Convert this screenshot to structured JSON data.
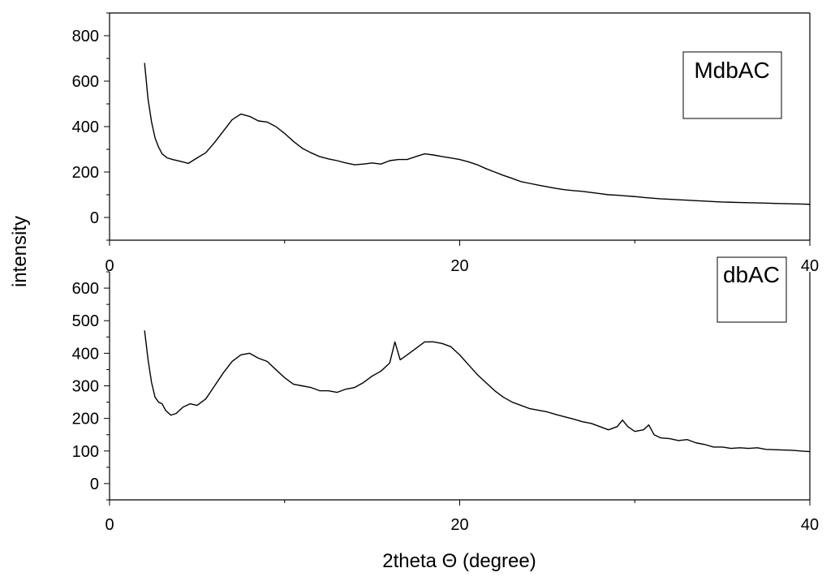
{
  "figure": {
    "ylabel": "intensity",
    "xlabel": "2theta Θ (degree)"
  },
  "chart_data": [
    {
      "type": "line",
      "legend_label": "MdbAC",
      "legend_position": "top-right",
      "xlim": [
        0,
        40
      ],
      "ylim": [
        -100,
        900
      ],
      "x_ticks": [
        0,
        20,
        40
      ],
      "y_ticks": [
        0,
        200,
        400,
        600,
        800
      ],
      "grid": false,
      "series": [
        {
          "x": [
            2.0,
            2.2,
            2.4,
            2.6,
            2.8,
            3.0,
            3.3,
            3.6,
            4.0,
            4.5,
            5.0,
            5.5,
            6.0,
            6.5,
            7.0,
            7.5,
            8.0,
            8.5,
            9.0,
            9.5,
            10.0,
            10.5,
            11.0,
            11.5,
            12.0,
            12.5,
            13.0,
            13.5,
            14.0,
            14.5,
            15.0,
            15.5,
            16.0,
            16.5,
            17.0,
            17.5,
            18.0,
            18.5,
            19.0,
            19.5,
            20.0,
            20.5,
            21.0,
            21.5,
            22.0,
            22.5,
            23.0,
            23.5,
            24.0,
            24.5,
            25.0,
            25.5,
            26.0,
            26.5,
            27.0,
            27.5,
            28.0,
            28.5,
            29.0,
            29.5,
            30.0,
            30.5,
            31.0,
            31.5,
            32.0,
            32.5,
            33.0,
            33.5,
            34.0,
            34.5,
            35.0,
            35.5,
            36.0,
            36.5,
            37.0,
            37.5,
            38.0,
            38.5,
            39.0,
            39.5,
            40.0
          ],
          "y": [
            680,
            520,
            420,
            350,
            310,
            280,
            262,
            255,
            248,
            238,
            262,
            285,
            330,
            380,
            430,
            455,
            445,
            425,
            420,
            400,
            370,
            335,
            305,
            285,
            268,
            258,
            250,
            240,
            232,
            235,
            240,
            235,
            250,
            255,
            255,
            268,
            280,
            275,
            268,
            262,
            255,
            245,
            232,
            215,
            200,
            185,
            172,
            158,
            150,
            142,
            135,
            128,
            122,
            118,
            115,
            110,
            105,
            100,
            98,
            95,
            92,
            88,
            85,
            82,
            80,
            78,
            76,
            74,
            72,
            70,
            68,
            67,
            66,
            65,
            64,
            63,
            62,
            61,
            60,
            59,
            58
          ]
        }
      ]
    },
    {
      "type": "line",
      "legend_label": "dbAC",
      "legend_position": "top-right",
      "xlim": [
        0,
        40
      ],
      "ylim": [
        -50,
        650
      ],
      "x_ticks": [
        0,
        20,
        40
      ],
      "y_ticks": [
        0,
        100,
        200,
        300,
        400,
        500,
        600
      ],
      "grid": false,
      "series": [
        {
          "x": [
            2.0,
            2.2,
            2.4,
            2.6,
            2.8,
            3.0,
            3.2,
            3.5,
            3.8,
            4.2,
            4.6,
            5.0,
            5.5,
            6.0,
            6.5,
            7.0,
            7.5,
            8.0,
            8.5,
            9.0,
            9.5,
            10.0,
            10.5,
            11.0,
            11.5,
            12.0,
            12.5,
            13.0,
            13.5,
            14.0,
            14.5,
            15.0,
            15.5,
            16.0,
            16.3,
            16.6,
            17.0,
            17.5,
            18.0,
            18.5,
            19.0,
            19.5,
            20.0,
            20.5,
            21.0,
            21.5,
            22.0,
            22.5,
            23.0,
            23.5,
            24.0,
            24.5,
            25.0,
            25.5,
            26.0,
            26.5,
            27.0,
            27.5,
            28.0,
            28.5,
            29.0,
            29.3,
            29.6,
            30.0,
            30.5,
            30.8,
            31.1,
            31.5,
            32.0,
            32.5,
            33.0,
            33.5,
            34.0,
            34.5,
            35.0,
            35.5,
            36.0,
            36.5,
            37.0,
            37.5,
            38.0,
            38.5,
            39.0,
            39.5,
            40.0
          ],
          "y": [
            470,
            380,
            310,
            265,
            250,
            245,
            225,
            210,
            215,
            235,
            245,
            240,
            260,
            300,
            340,
            375,
            395,
            400,
            385,
            375,
            350,
            325,
            305,
            300,
            295,
            285,
            285,
            280,
            290,
            295,
            310,
            330,
            345,
            370,
            435,
            380,
            395,
            415,
            435,
            435,
            430,
            420,
            395,
            365,
            335,
            310,
            285,
            265,
            250,
            240,
            230,
            225,
            220,
            212,
            205,
            198,
            190,
            185,
            175,
            165,
            175,
            195,
            175,
            160,
            165,
            180,
            150,
            140,
            138,
            132,
            135,
            125,
            120,
            112,
            112,
            108,
            110,
            108,
            110,
            105,
            104,
            103,
            102,
            100,
            98
          ]
        }
      ]
    }
  ]
}
